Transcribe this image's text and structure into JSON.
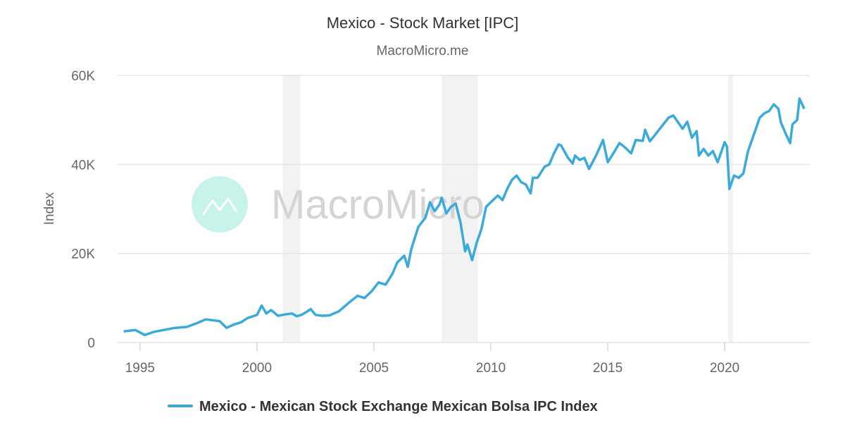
{
  "chart_data": {
    "type": "line",
    "title": "Mexico - Stock Market [IPC]",
    "subtitle": "MacroMicro.me",
    "watermark": "MacroMicro",
    "ylabel": "Index",
    "xlabel": "",
    "ylim": [
      0,
      60000
    ],
    "xlim": [
      1994.04,
      2023.64
    ],
    "yticks": [
      {
        "v": 0,
        "label": "0"
      },
      {
        "v": 20000,
        "label": "20K"
      },
      {
        "v": 40000,
        "label": "40K"
      },
      {
        "v": 60000,
        "label": "60K"
      }
    ],
    "xticks": [
      {
        "v": 1995,
        "label": "1995"
      },
      {
        "v": 2000,
        "label": "2000"
      },
      {
        "v": 2005,
        "label": "2005"
      },
      {
        "v": 2010,
        "label": "2010"
      },
      {
        "v": 2015,
        "label": "2015"
      },
      {
        "v": 2020,
        "label": "2020"
      }
    ],
    "grid": true,
    "legend_position": "bottom",
    "recession_bands": [
      [
        2001.1,
        2001.85
      ],
      [
        2007.9,
        2009.45
      ],
      [
        2020.15,
        2020.35
      ]
    ],
    "colors": {
      "series": "#3aabd8",
      "band": "#f2f2f2",
      "grid": "#e6e6e6",
      "logo": "#c8f3ea"
    },
    "series": [
      {
        "name": "Mexico - Mexican Stock Exchange Mexican Bolsa IPC Index",
        "points": [
          [
            1994.3,
            2500
          ],
          [
            1994.8,
            2800
          ],
          [
            1995.2,
            1700
          ],
          [
            1995.6,
            2400
          ],
          [
            1996.0,
            2800
          ],
          [
            1996.5,
            3300
          ],
          [
            1997.0,
            3500
          ],
          [
            1997.5,
            4500
          ],
          [
            1997.8,
            5200
          ],
          [
            1998.1,
            5000
          ],
          [
            1998.4,
            4800
          ],
          [
            1998.7,
            3300
          ],
          [
            1999.0,
            4000
          ],
          [
            1999.3,
            4500
          ],
          [
            1999.6,
            5500
          ],
          [
            2000.0,
            6200
          ],
          [
            2000.2,
            8300
          ],
          [
            2000.4,
            6500
          ],
          [
            2000.6,
            7300
          ],
          [
            2000.9,
            6000
          ],
          [
            2001.2,
            6300
          ],
          [
            2001.5,
            6500
          ],
          [
            2001.7,
            5900
          ],
          [
            2001.9,
            6200
          ],
          [
            2002.1,
            6800
          ],
          [
            2002.3,
            7500
          ],
          [
            2002.5,
            6200
          ],
          [
            2002.8,
            6000
          ],
          [
            2003.1,
            6100
          ],
          [
            2003.5,
            7000
          ],
          [
            2003.9,
            8800
          ],
          [
            2004.3,
            10500
          ],
          [
            2004.6,
            10000
          ],
          [
            2004.9,
            11500
          ],
          [
            2005.2,
            13500
          ],
          [
            2005.5,
            13000
          ],
          [
            2005.8,
            15500
          ],
          [
            2006.0,
            18000
          ],
          [
            2006.3,
            19500
          ],
          [
            2006.45,
            17000
          ],
          [
            2006.6,
            21000
          ],
          [
            2006.9,
            26000
          ],
          [
            2007.2,
            28000
          ],
          [
            2007.4,
            31500
          ],
          [
            2007.6,
            29500
          ],
          [
            2007.8,
            31000
          ],
          [
            2007.9,
            32500
          ],
          [
            2008.1,
            29000
          ],
          [
            2008.3,
            30500
          ],
          [
            2008.5,
            31200
          ],
          [
            2008.7,
            27000
          ],
          [
            2008.9,
            20500
          ],
          [
            2009.0,
            22000
          ],
          [
            2009.2,
            18500
          ],
          [
            2009.4,
            22500
          ],
          [
            2009.6,
            25500
          ],
          [
            2009.8,
            30500
          ],
          [
            2010.0,
            31500
          ],
          [
            2010.3,
            33000
          ],
          [
            2010.5,
            32000
          ],
          [
            2010.7,
            34500
          ],
          [
            2010.9,
            36500
          ],
          [
            2011.1,
            37500
          ],
          [
            2011.3,
            36000
          ],
          [
            2011.5,
            35500
          ],
          [
            2011.7,
            33500
          ],
          [
            2011.8,
            37000
          ],
          [
            2012.0,
            37000
          ],
          [
            2012.3,
            39500
          ],
          [
            2012.5,
            40000
          ],
          [
            2012.7,
            42500
          ],
          [
            2012.9,
            44500
          ],
          [
            2013.0,
            44300
          ],
          [
            2013.3,
            41500
          ],
          [
            2013.5,
            40200
          ],
          [
            2013.6,
            42000
          ],
          [
            2013.8,
            41000
          ],
          [
            2014.0,
            41500
          ],
          [
            2014.2,
            39000
          ],
          [
            2014.5,
            42000
          ],
          [
            2014.8,
            45500
          ],
          [
            2014.9,
            43000
          ],
          [
            2015.0,
            40500
          ],
          [
            2015.3,
            43000
          ],
          [
            2015.5,
            44800
          ],
          [
            2015.7,
            44000
          ],
          [
            2015.9,
            43000
          ],
          [
            2016.0,
            42500
          ],
          [
            2016.2,
            45500
          ],
          [
            2016.5,
            45300
          ],
          [
            2016.6,
            47800
          ],
          [
            2016.8,
            45200
          ],
          [
            2017.0,
            46500
          ],
          [
            2017.3,
            48500
          ],
          [
            2017.6,
            50500
          ],
          [
            2017.8,
            51000
          ],
          [
            2018.0,
            49500
          ],
          [
            2018.2,
            48000
          ],
          [
            2018.4,
            49600
          ],
          [
            2018.6,
            46000
          ],
          [
            2018.8,
            47500
          ],
          [
            2018.9,
            42000
          ],
          [
            2019.1,
            43500
          ],
          [
            2019.3,
            42000
          ],
          [
            2019.5,
            43000
          ],
          [
            2019.7,
            40500
          ],
          [
            2019.9,
            43500
          ],
          [
            2020.0,
            45000
          ],
          [
            2020.1,
            44000
          ],
          [
            2020.2,
            34500
          ],
          [
            2020.4,
            37500
          ],
          [
            2020.6,
            37000
          ],
          [
            2020.8,
            38000
          ],
          [
            2021.0,
            43000
          ],
          [
            2021.3,
            47500
          ],
          [
            2021.5,
            50500
          ],
          [
            2021.7,
            51500
          ],
          [
            2021.9,
            52000
          ],
          [
            2022.1,
            53500
          ],
          [
            2022.3,
            52500
          ],
          [
            2022.4,
            49500
          ],
          [
            2022.6,
            47000
          ],
          [
            2022.8,
            44800
          ],
          [
            2022.9,
            49000
          ],
          [
            2023.1,
            50000
          ],
          [
            2023.2,
            54800
          ],
          [
            2023.4,
            52500
          ]
        ]
      }
    ]
  }
}
